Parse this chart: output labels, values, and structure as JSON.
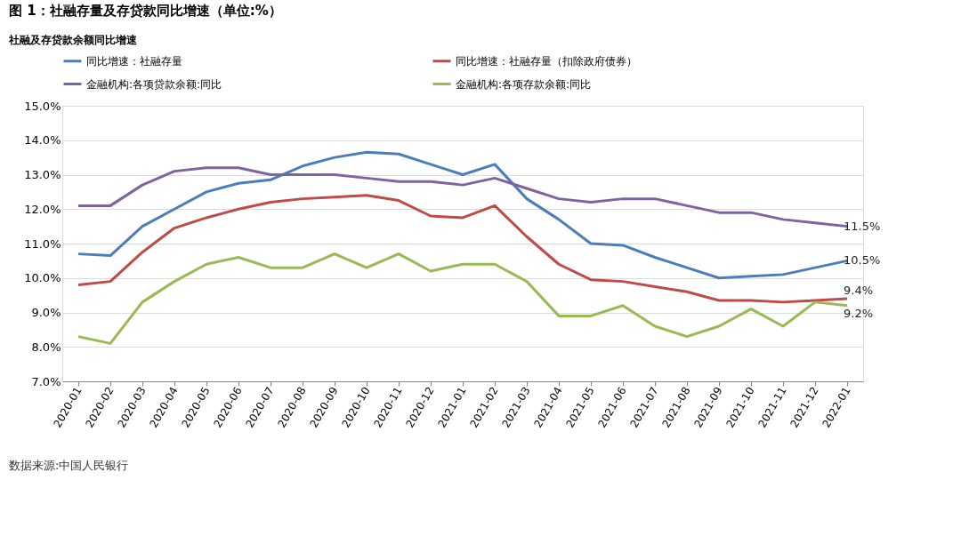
{
  "chart_data": {
    "type": "line",
    "title": "图 1：社融存量及存贷款同比增速（单位:%）",
    "subtitle": "社融及存贷款余额同比增速",
    "categories": [
      "2020-01",
      "2020-02",
      "2020-03",
      "2020-04",
      "2020-05",
      "2020-06",
      "2020-07",
      "2020-08",
      "2020-09",
      "2020-10",
      "2020-11",
      "2020-12",
      "2021-01",
      "2021-02",
      "2021-03",
      "2021-04",
      "2021-05",
      "2021-06",
      "2021-07",
      "2021-08",
      "2021-09",
      "2021-10",
      "2021-11",
      "2021-12",
      "2022-01"
    ],
    "series": [
      {
        "name": "同比增速：社融存量",
        "color": "#4a7ebb",
        "values": [
          10.7,
          10.65,
          11.5,
          12.0,
          12.5,
          12.75,
          12.85,
          13.25,
          13.5,
          13.65,
          13.6,
          13.3,
          13.0,
          13.3,
          12.3,
          11.7,
          11.0,
          10.95,
          10.6,
          10.3,
          10.0,
          10.05,
          10.1,
          10.3,
          10.5
        ],
        "value_labels": [
          null,
          null,
          null,
          null,
          null,
          null,
          null,
          null,
          null,
          null,
          null,
          null,
          null,
          null,
          null,
          null,
          null,
          null,
          null,
          null,
          null,
          null,
          null,
          null,
          "10.5%"
        ]
      },
      {
        "name": "同比增速：社融存量（扣除政府债券）",
        "color": "#be4b48",
        "values": [
          9.8,
          9.9,
          10.75,
          11.45,
          11.75,
          12.0,
          12.2,
          12.3,
          12.35,
          12.4,
          12.25,
          11.8,
          11.75,
          12.1,
          11.2,
          10.4,
          9.95,
          9.9,
          9.75,
          9.6,
          9.35,
          9.35,
          9.3,
          9.35,
          9.4
        ],
        "value_labels": [
          null,
          null,
          null,
          null,
          null,
          null,
          null,
          null,
          null,
          null,
          null,
          null,
          null,
          null,
          null,
          null,
          null,
          null,
          null,
          null,
          null,
          null,
          null,
          null,
          "9.4%"
        ]
      },
      {
        "name": "金融机构:各项贷款余额:同比",
        "color": "#7f62a0",
        "values": [
          12.1,
          12.1,
          12.7,
          13.1,
          13.2,
          13.2,
          13.0,
          13.0,
          13.0,
          12.9,
          12.8,
          12.8,
          12.7,
          12.9,
          12.6,
          12.3,
          12.2,
          12.3,
          12.3,
          12.1,
          11.9,
          11.9,
          11.7,
          11.6,
          11.5
        ],
        "value_labels": [
          null,
          null,
          null,
          null,
          null,
          null,
          null,
          null,
          null,
          null,
          null,
          null,
          null,
          null,
          null,
          null,
          null,
          null,
          null,
          null,
          null,
          null,
          null,
          null,
          "11.5%"
        ]
      },
      {
        "name": "金融机构:各项存款余额:同比",
        "color": "#98b954",
        "values": [
          8.3,
          8.1,
          9.3,
          9.9,
          10.4,
          10.6,
          10.3,
          10.3,
          10.7,
          10.3,
          10.7,
          10.2,
          10.4,
          10.4,
          9.9,
          8.9,
          8.9,
          9.2,
          8.6,
          8.3,
          8.6,
          9.1,
          8.6,
          9.3,
          9.2
        ],
        "value_labels": [
          null,
          null,
          null,
          null,
          null,
          null,
          null,
          null,
          null,
          null,
          null,
          null,
          null,
          null,
          null,
          null,
          null,
          null,
          null,
          null,
          null,
          null,
          null,
          null,
          "9.2%"
        ]
      }
    ],
    "ylim": [
      7,
      15
    ],
    "yticks": [
      {
        "value": 7,
        "label": "7.0%"
      },
      {
        "value": 8,
        "label": "8.0%"
      },
      {
        "value": 9,
        "label": "9.0%"
      },
      {
        "value": 10,
        "label": "10.0%"
      },
      {
        "value": 11,
        "label": "11.0%"
      },
      {
        "value": 12,
        "label": "12.0%"
      },
      {
        "value": 13,
        "label": "13.0%"
      },
      {
        "value": 14,
        "label": "14.0%"
      },
      {
        "value": 15,
        "label": "15.0%"
      }
    ],
    "grid": "y",
    "legend": "top",
    "marker": "none",
    "line_style": "solid",
    "annotations": [
      "数据来源:中国人民银行"
    ]
  }
}
